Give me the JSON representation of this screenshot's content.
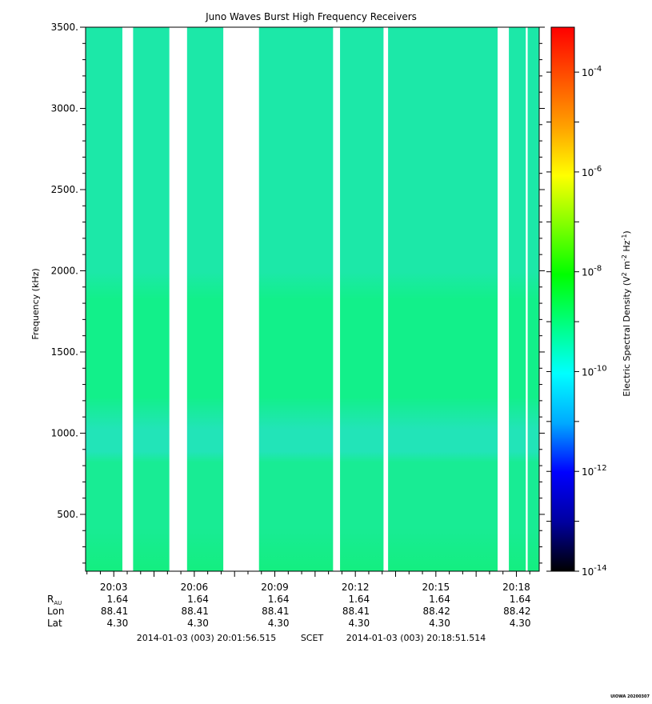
{
  "chart_data": {
    "type": "heatmap",
    "title": "Juno Waves Burst High Frequency Receivers",
    "ylabel": "Frequency (kHz)",
    "ylim": [
      150,
      3500
    ],
    "yticks": [
      "500.",
      "1000.",
      "1500.",
      "2000.",
      "2500.",
      "3000.",
      "3500."
    ],
    "ytick_values": [
      500,
      1000,
      1500,
      2000,
      2500,
      3000,
      3500
    ],
    "xlim_minutes": [
      1.95,
      18.85
    ],
    "xticks": [
      "20:03",
      "20:06",
      "20:09",
      "20:12",
      "20:15",
      "20:18"
    ],
    "xtick_values": [
      3,
      6,
      9,
      12,
      15,
      18
    ],
    "data_intervals_minutes": [
      [
        1.95,
        3.32
      ],
      [
        3.72,
        5.07
      ],
      [
        5.73,
        7.08
      ],
      [
        8.41,
        11.17
      ],
      [
        11.43,
        13.05
      ],
      [
        13.22,
        17.3
      ],
      [
        17.72,
        18.35
      ],
      [
        18.42,
        18.85
      ]
    ],
    "colorbar": {
      "label": "Electric Spectral Density (V",
      "label_sup1": "2",
      "label_mid": " m",
      "label_sup2": "-2",
      "label_mid2": " Hz",
      "label_sup3": "-1",
      "label_end": ")",
      "scale": "log",
      "exponent_range": [
        -14,
        -3.1
      ],
      "tick_exponents": [
        -4,
        -6,
        -8,
        -10,
        -12,
        -14
      ],
      "tick_labels": [
        {
          "base": "10",
          "exp": "-4"
        },
        {
          "base": "10",
          "exp": "-6"
        },
        {
          "base": "10",
          "exp": "-8"
        },
        {
          "base": "10",
          "exp": "-10"
        },
        {
          "base": "10",
          "exp": "-12"
        },
        {
          "base": "10",
          "exp": "-14"
        }
      ],
      "colormap": [
        "#000000",
        "#0000a0",
        "#0000ff",
        "#00aaff",
        "#00ffff",
        "#00ff80",
        "#00ff00",
        "#80ff00",
        "#ffff00",
        "#ffa000",
        "#ff5000",
        "#ff0000"
      ]
    },
    "dominant_level_exponent": -10,
    "band_colors": {
      "upper": "#1ce8a8",
      "mid": "#12f08a",
      "low_mid": "#18ec94",
      "gap": "#22e4b8",
      "bottom": "#14ee80"
    },
    "ephemeris": {
      "rows": [
        {
          "label": "R",
          "label_sub": "AU",
          "values": [
            "1.64",
            "1.64",
            "1.64",
            "1.64",
            "1.64",
            "1.64"
          ]
        },
        {
          "label": "Lon",
          "label_sub": "",
          "values": [
            "88.41",
            "88.41",
            "88.41",
            "88.41",
            "88.42",
            "88.42"
          ]
        },
        {
          "label": "Lat",
          "label_sub": "",
          "values": [
            "4.30",
            "4.30",
            "4.30",
            "4.30",
            "4.30",
            "4.30"
          ]
        }
      ]
    },
    "time_range": {
      "start": "2014-01-03 (003) 20:01:56.515",
      "frame": "SCET",
      "end": "2014-01-03 (003) 20:18:51.514"
    },
    "stamp": "UIOWA 20200307"
  }
}
